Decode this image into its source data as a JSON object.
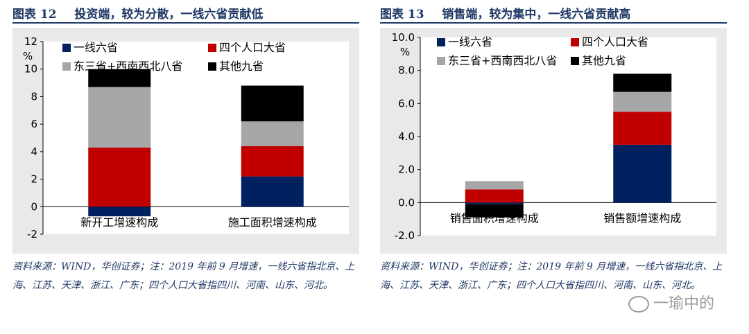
{
  "charts": [
    {
      "figure_label": "图表 12",
      "title": "投资端，较为分散，一线六省贡献低",
      "note": "资料来源：WIND，华创证券；注：2019 年前 9 月增速，一线六省指北京、上海、江苏、天津、浙江、广东；四个人口大省指四川、河南、山东、河北。",
      "chart_data": {
        "type": "bar",
        "stacked": true,
        "categories": [
          "新开工增速构成",
          "施工面积增速构成"
        ],
        "series": [
          {
            "name": "一线六省",
            "color": "#002060",
            "values": [
              -0.7,
              2.2
            ]
          },
          {
            "name": "四个人口大省",
            "color": "#c00000",
            "values": [
              4.3,
              2.2
            ]
          },
          {
            "name": "东三省+西南西北八省",
            "color": "#a6a6a6",
            "values": [
              4.4,
              1.8
            ]
          },
          {
            "name": "其他九省",
            "color": "#000000",
            "values": [
              1.3,
              2.6
            ]
          }
        ],
        "ylabel": "%",
        "ylim": [
          -2,
          12
        ],
        "yticks": [
          -2,
          0,
          2,
          4,
          6,
          8,
          10,
          12
        ],
        "ytick_labels": [
          "-2",
          "0",
          "2",
          "4",
          "6",
          "8",
          "10",
          "12"
        ],
        "legend": "top-left, 2 columns",
        "grid": false
      }
    },
    {
      "figure_label": "图表 13",
      "title": "销售端，较为集中，一线六省贡献高",
      "note": "资料来源：WIND，华创证券；注：2019 年前 9 月增速，一线六省指北京、上海、江苏、天津、浙江、广东；四个人口大省指四川、河南、山东、河北。",
      "chart_data": {
        "type": "bar",
        "stacked": true,
        "categories": [
          "销售面积增速构成",
          "销售额增速构成"
        ],
        "series": [
          {
            "name": "一线六省",
            "color": "#002060",
            "values": [
              -0.1,
              3.5
            ]
          },
          {
            "name": "四个人口大省",
            "color": "#c00000",
            "values": [
              0.8,
              2.0
            ]
          },
          {
            "name": "东三省+西南西北八省",
            "color": "#a6a6a6",
            "values": [
              0.5,
              1.2
            ]
          },
          {
            "name": "其他九省",
            "color": "#000000",
            "values": [
              -0.8,
              1.1
            ]
          }
        ],
        "ylabel": "%",
        "ylim": [
          -2,
          10
        ],
        "yticks": [
          -2,
          0,
          2,
          4,
          6,
          8,
          10
        ],
        "ytick_labels": [
          "-2.0",
          "0.0",
          "2.0",
          "4.0",
          "6.0",
          "8.0",
          "10.0"
        ],
        "legend": "top-left, 2 columns",
        "grid": false
      }
    }
  ],
  "watermark": "一瑜中的"
}
